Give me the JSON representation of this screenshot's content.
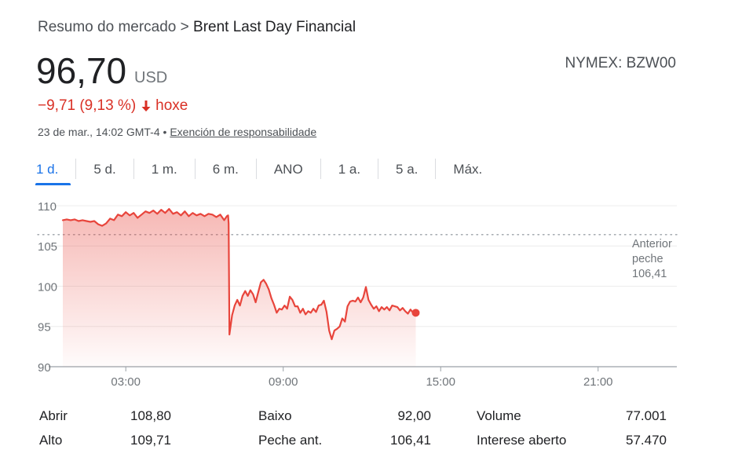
{
  "breadcrumb": {
    "root": "Resumo do mercado",
    "separator": ">",
    "current": "Brent Last Day Financial"
  },
  "quote": {
    "price": "96,70",
    "currency": "USD",
    "ticker": "NYMEX: BZW00",
    "change": "−9,71 (9,13 %)",
    "change_direction": "down",
    "change_period": "hoxe",
    "timestamp": "23 de mar., 14:02 GMT-4",
    "bullet": "•",
    "disclaimer_link": "Exención de responsabilidade"
  },
  "colors": {
    "negative": "#d93025",
    "accent": "#1a73e8",
    "line": "#e8453c"
  },
  "tabs": [
    {
      "label": "1 d.",
      "active": true
    },
    {
      "label": "5 d.",
      "active": false
    },
    {
      "label": "1 m.",
      "active": false
    },
    {
      "label": "6 m.",
      "active": false
    },
    {
      "label": "ANO",
      "active": false
    },
    {
      "label": "1 a.",
      "active": false
    },
    {
      "label": "5 a.",
      "active": false
    },
    {
      "label": "Máx.",
      "active": false
    }
  ],
  "chart_data": {
    "type": "area",
    "y_ticks": [
      "110",
      "105",
      "100",
      "95",
      "90"
    ],
    "ylim": [
      90,
      110
    ],
    "x_ticks": [
      "03:00",
      "09:00",
      "15:00",
      "21:00"
    ],
    "x_tick_hours": [
      3,
      9,
      15,
      21
    ],
    "xlim_hours": [
      0.6,
      24
    ],
    "previous_close": {
      "label_line1": "Anterior",
      "label_line2": "peche",
      "value_text": "106,41",
      "value": 106.41
    },
    "series": [
      {
        "x_hours": [
          0.6,
          0.75,
          0.9,
          1.05,
          1.2,
          1.35,
          1.5,
          1.65,
          1.8,
          1.95,
          2.1,
          2.25,
          2.4,
          2.55,
          2.7,
          2.85,
          3.0,
          3.15,
          3.3,
          3.45,
          3.6,
          3.75,
          3.9,
          4.05,
          4.2,
          4.35,
          4.5,
          4.65,
          4.8,
          4.95,
          5.1,
          5.25,
          5.4,
          5.55,
          5.7,
          5.85,
          6.0,
          6.15,
          6.3,
          6.45,
          6.6,
          6.75,
          6.85,
          6.9,
          6.92,
          6.95,
          7.05,
          7.15,
          7.25,
          7.35,
          7.45,
          7.55,
          7.65,
          7.75,
          7.85,
          7.95,
          8.05,
          8.15,
          8.25,
          8.35,
          8.45,
          8.55,
          8.65,
          8.75,
          8.85,
          8.95,
          9.05,
          9.15,
          9.25,
          9.35,
          9.45,
          9.55,
          9.65,
          9.75,
          9.85,
          9.95,
          10.05,
          10.15,
          10.25,
          10.35,
          10.45,
          10.55,
          10.65,
          10.75,
          10.85,
          10.95,
          11.05,
          11.15,
          11.25,
          11.35,
          11.45,
          11.55,
          11.65,
          11.75,
          11.85,
          11.95,
          12.05,
          12.15,
          12.25,
          12.35,
          12.45,
          12.55,
          12.65,
          12.75,
          12.85,
          12.95,
          13.05,
          13.15,
          13.25,
          13.35,
          13.45,
          13.55,
          13.65,
          13.75,
          13.85,
          13.95,
          14.05
        ],
        "values": [
          108.2,
          108.3,
          108.2,
          108.3,
          108.1,
          108.2,
          108.1,
          108.0,
          108.1,
          107.7,
          107.5,
          107.8,
          108.4,
          108.2,
          108.9,
          108.7,
          109.2,
          108.8,
          109.1,
          108.5,
          108.9,
          109.3,
          109.1,
          109.4,
          109.0,
          109.5,
          109.1,
          109.6,
          109.0,
          109.2,
          108.8,
          109.3,
          108.7,
          109.1,
          108.8,
          109.0,
          108.7,
          109.0,
          108.9,
          108.6,
          108.9,
          108.2,
          108.7,
          108.8,
          107.8,
          94.0,
          96.4,
          97.6,
          98.3,
          97.6,
          98.8,
          99.4,
          98.8,
          99.5,
          99.0,
          98.0,
          99.3,
          100.5,
          100.8,
          100.3,
          99.6,
          98.5,
          97.7,
          96.7,
          97.2,
          97.1,
          97.6,
          97.2,
          98.7,
          98.3,
          97.5,
          97.5,
          96.7,
          97.2,
          96.5,
          96.9,
          96.7,
          97.2,
          96.8,
          97.6,
          97.7,
          98.2,
          96.8,
          94.5,
          93.4,
          94.5,
          94.7,
          95.0,
          96.0,
          95.6,
          97.5,
          98.1,
          98.2,
          98.1,
          98.6,
          98.0,
          98.6,
          99.9,
          98.3,
          97.7,
          97.2,
          97.5,
          96.9,
          97.4,
          97.1,
          97.4,
          97.0,
          97.6,
          97.5,
          97.4,
          97.0,
          97.3,
          96.9,
          96.6,
          97.1,
          96.7,
          96.7
        ]
      }
    ],
    "last_point": {
      "x_hours": 14.05,
      "value": 96.7
    },
    "grid": true
  },
  "stats": [
    {
      "label": "Abrir",
      "value": "108,80"
    },
    {
      "label": "Alto",
      "value": "109,71"
    },
    {
      "label": "Baixo",
      "value": "92,00"
    },
    {
      "label": "Peche ant.",
      "value": "106,41"
    },
    {
      "label": "Volume",
      "value": "77.001"
    },
    {
      "label": "Interese aberto",
      "value": "57.470"
    }
  ]
}
